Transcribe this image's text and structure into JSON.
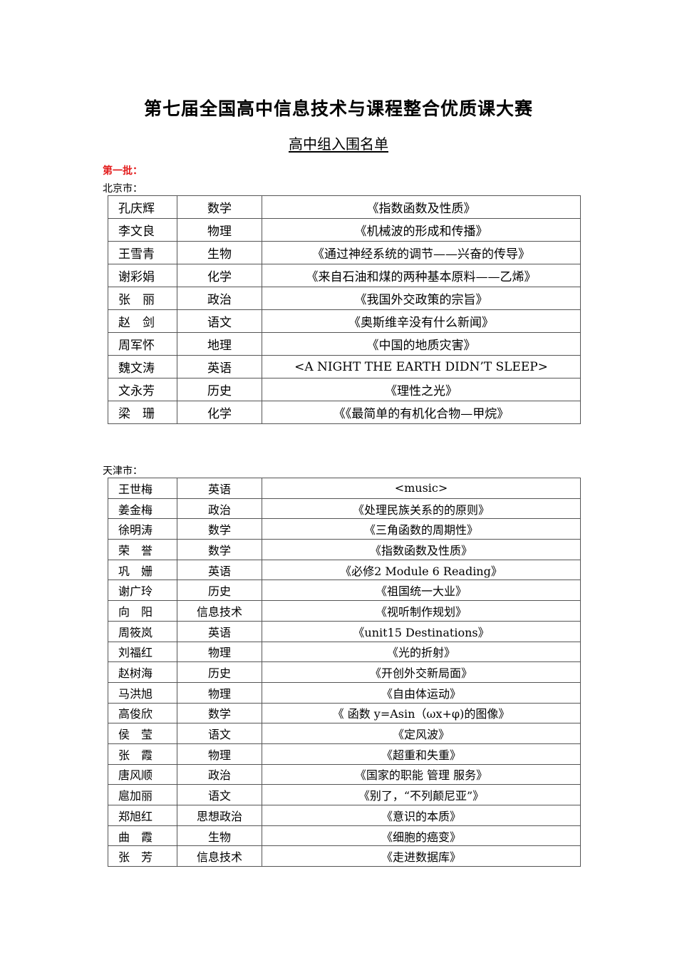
{
  "title": "第七届全国高中信息技术与课程整合优质课大赛",
  "subtitle": "高中组入围名单",
  "batch": "第一批：",
  "sections": [
    {
      "region": "北京市：",
      "rows": [
        {
          "name": "孔庆辉",
          "subject": "数学",
          "lesson": "《指数函数及性质》"
        },
        {
          "name": "李文良",
          "subject": "物理",
          "lesson": "《机械波的形成和传播》"
        },
        {
          "name": "王雪青",
          "subject": "生物",
          "lesson": "《通过神经系统的调节——兴奋的传导》"
        },
        {
          "name": "谢彩娟",
          "subject": "化学",
          "lesson": "《来自石油和煤的两种基本原料——乙烯》"
        },
        {
          "name": "张　丽",
          "subject": "政治",
          "lesson": "《我国外交政策的宗旨》"
        },
        {
          "name": "赵　剑",
          "subject": "语文",
          "lesson": "《奥斯维辛没有什么新闻》"
        },
        {
          "name": "周军怀",
          "subject": "地理",
          "lesson": "《中国的地质灾害》"
        },
        {
          "name": "魏文涛",
          "subject": "英语",
          "lesson": "<A NIGHT THE EARTH DIDN’T SLEEP>"
        },
        {
          "name": "文永芳",
          "subject": "历史",
          "lesson": "《理性之光》"
        },
        {
          "name": "梁　珊",
          "subject": "化学",
          "lesson": "《《最简单的有机化合物—甲烷》"
        }
      ]
    },
    {
      "region": "天津市：",
      "rows": [
        {
          "name": "王世梅",
          "subject": "英语",
          "lesson": "<music>"
        },
        {
          "name": "姜金梅",
          "subject": "政治",
          "lesson": "《处理民族关系的的原则》"
        },
        {
          "name": "徐明涛",
          "subject": "数学",
          "lesson": "《三角函数的周期性》"
        },
        {
          "name": "荣　誉",
          "subject": "数学",
          "lesson": "《指数函数及性质》"
        },
        {
          "name": "巩　姗",
          "subject": "英语",
          "lesson": "《必修2 Module 6 Reading》"
        },
        {
          "name": "谢广玲",
          "subject": "历史",
          "lesson": "《祖国统一大业》"
        },
        {
          "name": "向　阳",
          "subject": "信息技术",
          "lesson": "《视听制作规划》"
        },
        {
          "name": "周筱岚",
          "subject": "英语",
          "lesson": "《unit15 Destinations》"
        },
        {
          "name": "刘福红",
          "subject": "物理",
          "lesson": "《光的折射》"
        },
        {
          "name": "赵树海",
          "subject": "历史",
          "lesson": "《开创外交新局面》"
        },
        {
          "name": "马洪旭",
          "subject": "物理",
          "lesson": "《自由体运动》"
        },
        {
          "name": "高俊欣",
          "subject": "数学",
          "lesson": "《 函数 y=Asin（ωx+φ)的图像》"
        },
        {
          "name": "侯　莹",
          "subject": "语文",
          "lesson": "《定风波》"
        },
        {
          "name": "张　霞",
          "subject": "物理",
          "lesson": "《超重和失重》"
        },
        {
          "name": "唐风顺",
          "subject": "政治",
          "lesson": "《国家的职能 管理 服务》"
        },
        {
          "name": "扈加丽",
          "subject": "语文",
          "lesson": "《别了，“不列颠尼亚”》"
        },
        {
          "name": "郑旭红",
          "subject": "思想政治",
          "lesson": "《意识的本质》"
        },
        {
          "name": "曲　霞",
          "subject": "生物",
          "lesson": "《细胞的癌变》"
        },
        {
          "name": "张　芳",
          "subject": "信息技术",
          "lesson": "《走进数据库》"
        }
      ]
    }
  ]
}
